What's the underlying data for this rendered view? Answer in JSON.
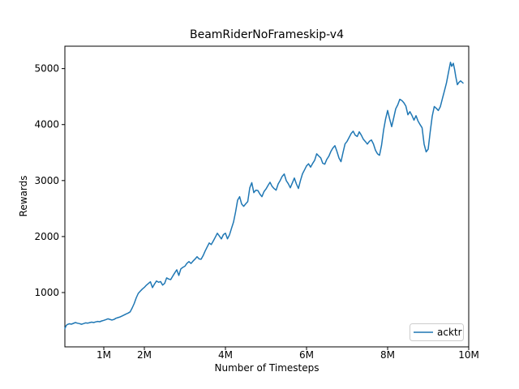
{
  "chart_data": {
    "type": "line",
    "title": "BeamRiderNoFrameskip-v4",
    "xlabel": "Number of Timesteps",
    "ylabel": "Rewards",
    "x_unit": "millions of timesteps",
    "xlim": [
      0.04,
      10.0
    ],
    "ylim": [
      30,
      5400
    ],
    "grid": false,
    "x_ticks": [
      {
        "value": 1,
        "label": "1M"
      },
      {
        "value": 2,
        "label": "2M"
      },
      {
        "value": 4,
        "label": "4M"
      },
      {
        "value": 6,
        "label": "6M"
      },
      {
        "value": 8,
        "label": "8M"
      },
      {
        "value": 10,
        "label": "10M"
      }
    ],
    "y_ticks": [
      {
        "value": 1000,
        "label": "1000"
      },
      {
        "value": 2000,
        "label": "2000"
      },
      {
        "value": 3000,
        "label": "3000"
      },
      {
        "value": 4000,
        "label": "4000"
      },
      {
        "value": 5000,
        "label": "5000"
      }
    ],
    "legend": {
      "position": "lower right",
      "entries": [
        {
          "label": "acktr",
          "color": "#1f77b4"
        }
      ]
    },
    "series": [
      {
        "name": "acktr",
        "color": "#1f77b4",
        "x": [
          0.04,
          0.07,
          0.1,
          0.15,
          0.2,
          0.25,
          0.3,
          0.35,
          0.4,
          0.45,
          0.5,
          0.55,
          0.6,
          0.65,
          0.7,
          0.75,
          0.8,
          0.85,
          0.9,
          0.95,
          1.0,
          1.05,
          1.1,
          1.15,
          1.2,
          1.25,
          1.3,
          1.35,
          1.4,
          1.45,
          1.5,
          1.55,
          1.6,
          1.65,
          1.7,
          1.75,
          1.8,
          1.85,
          1.9,
          1.95,
          2.0,
          2.05,
          2.1,
          2.15,
          2.2,
          2.25,
          2.3,
          2.35,
          2.4,
          2.45,
          2.5,
          2.55,
          2.6,
          2.65,
          2.7,
          2.75,
          2.8,
          2.85,
          2.9,
          2.95,
          3.0,
          3.05,
          3.1,
          3.15,
          3.2,
          3.25,
          3.3,
          3.35,
          3.4,
          3.45,
          3.5,
          3.55,
          3.6,
          3.65,
          3.7,
          3.75,
          3.8,
          3.85,
          3.9,
          3.95,
          4.0,
          4.05,
          4.1,
          4.15,
          4.2,
          4.25,
          4.3,
          4.35,
          4.4,
          4.45,
          4.5,
          4.55,
          4.6,
          4.65,
          4.7,
          4.75,
          4.8,
          4.85,
          4.9,
          4.95,
          5.0,
          5.05,
          5.1,
          5.15,
          5.2,
          5.25,
          5.3,
          5.35,
          5.4,
          5.45,
          5.5,
          5.55,
          5.6,
          5.65,
          5.7,
          5.75,
          5.8,
          5.85,
          5.9,
          5.95,
          6.0,
          6.05,
          6.1,
          6.15,
          6.2,
          6.25,
          6.3,
          6.35,
          6.4,
          6.45,
          6.5,
          6.55,
          6.6,
          6.65,
          6.7,
          6.75,
          6.8,
          6.85,
          6.9,
          6.95,
          7.0,
          7.05,
          7.1,
          7.15,
          7.2,
          7.25,
          7.3,
          7.35,
          7.4,
          7.45,
          7.5,
          7.55,
          7.6,
          7.65,
          7.7,
          7.75,
          7.8,
          7.85,
          7.9,
          7.95,
          8.0,
          8.05,
          8.1,
          8.15,
          8.2,
          8.25,
          8.3,
          8.35,
          8.4,
          8.45,
          8.5,
          8.55,
          8.6,
          8.65,
          8.7,
          8.75,
          8.8,
          8.85,
          8.9,
          8.95,
          9.0,
          9.05,
          9.1,
          9.15,
          9.2,
          9.25,
          9.3,
          9.35,
          9.4,
          9.45,
          9.5,
          9.55,
          9.58,
          9.62,
          9.65,
          9.68,
          9.72,
          9.76,
          9.8,
          9.86
        ],
        "y": [
          355,
          408,
          430,
          442,
          436,
          450,
          464,
          452,
          446,
          434,
          446,
          459,
          452,
          463,
          471,
          464,
          476,
          484,
          479,
          493,
          504,
          517,
          531,
          521,
          509,
          519,
          541,
          553,
          564,
          581,
          599,
          617,
          634,
          655,
          725,
          805,
          905,
          985,
          1025,
          1062,
          1092,
          1132,
          1162,
          1192,
          1088,
          1152,
          1207,
          1183,
          1197,
          1133,
          1163,
          1262,
          1242,
          1232,
          1292,
          1352,
          1407,
          1305,
          1422,
          1450,
          1470,
          1523,
          1552,
          1520,
          1562,
          1597,
          1640,
          1600,
          1595,
          1660,
          1742,
          1815,
          1885,
          1857,
          1920,
          1988,
          2060,
          2010,
          1958,
          2035,
          2060,
          1960,
          2030,
          2148,
          2260,
          2440,
          2650,
          2712,
          2580,
          2540,
          2585,
          2625,
          2870,
          2962,
          2785,
          2830,
          2822,
          2758,
          2712,
          2802,
          2850,
          2912,
          2970,
          2898,
          2857,
          2828,
          2940,
          3002,
          3075,
          3118,
          2998,
          2944,
          2872,
          2958,
          3045,
          2940,
          2858,
          3000,
          3120,
          3190,
          3262,
          3300,
          3240,
          3305,
          3362,
          3478,
          3440,
          3405,
          3308,
          3292,
          3380,
          3435,
          3520,
          3582,
          3622,
          3520,
          3402,
          3338,
          3502,
          3655,
          3700,
          3770,
          3840,
          3882,
          3812,
          3788,
          3870,
          3812,
          3740,
          3698,
          3652,
          3700,
          3725,
          3655,
          3542,
          3478,
          3452,
          3630,
          3900,
          4100,
          4252,
          4100,
          3962,
          4120,
          4282,
          4352,
          4452,
          4430,
          4390,
          4330,
          4175,
          4230,
          4162,
          4080,
          4158,
          4062,
          4000,
          3942,
          3650,
          3512,
          3562,
          3870,
          4150,
          4322,
          4290,
          4252,
          4320,
          4462,
          4600,
          4740,
          4930,
          5112,
          5040,
          5095,
          4990,
          4858,
          4712,
          4755,
          4780,
          4742
        ]
      }
    ]
  }
}
